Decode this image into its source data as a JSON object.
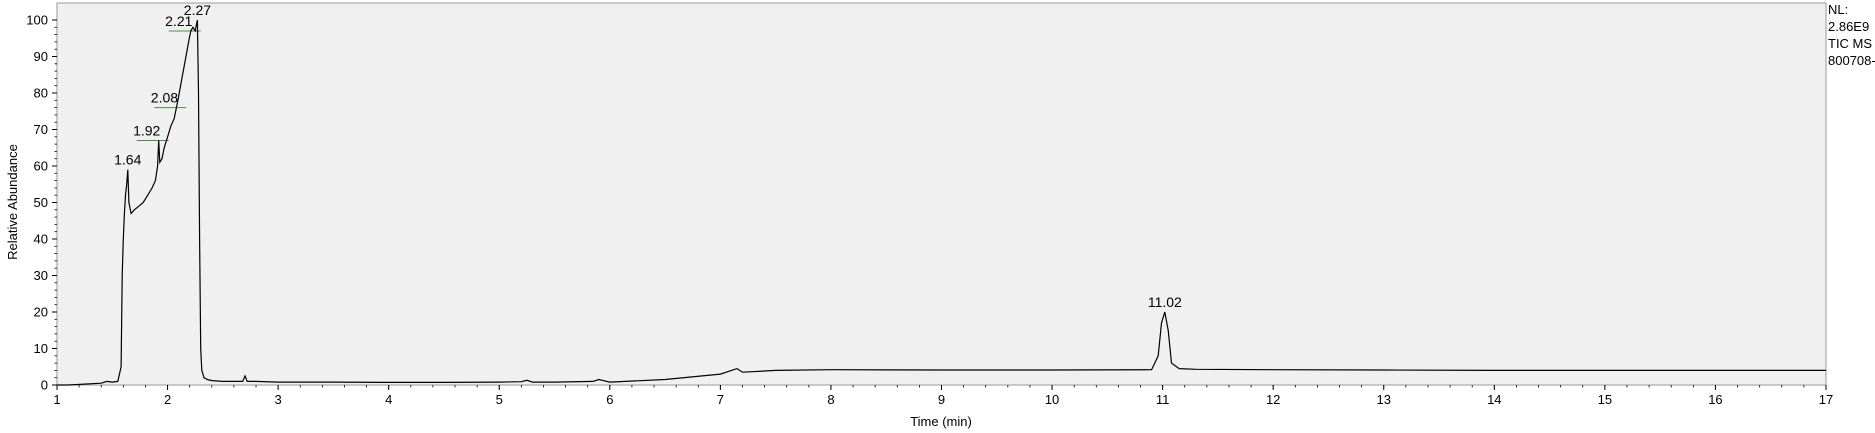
{
  "chart_data": {
    "type": "line",
    "xlabel": "Time (min)",
    "ylabel": "Relative Abundance",
    "xlim": [
      1,
      17
    ],
    "ylim": [
      0,
      100
    ],
    "x_ticks": [
      1,
      2,
      3,
      4,
      5,
      6,
      7,
      8,
      9,
      10,
      11,
      12,
      13,
      14,
      15,
      16,
      17
    ],
    "y_ticks": [
      0,
      10,
      20,
      30,
      40,
      50,
      60,
      70,
      80,
      90,
      100
    ],
    "grid": false,
    "plot_background": "#f0f0f0",
    "line_color": "#000000",
    "marker_color": "#3a9a3a",
    "peaks": [
      {
        "label": "1.64",
        "x": 1.64,
        "y": 59
      },
      {
        "label": "1.92",
        "x": 1.92,
        "y": 67
      },
      {
        "label": "2.08",
        "x": 2.08,
        "y": 76
      },
      {
        "label": "2.21",
        "x": 2.21,
        "y": 97
      },
      {
        "label": "2.27",
        "x": 2.27,
        "y": 100
      },
      {
        "label": "11.02",
        "x": 11.02,
        "y": 20
      }
    ],
    "series": [
      {
        "x": [
          1.0,
          1.1,
          1.4,
          1.45,
          1.5,
          1.55,
          1.58,
          1.59,
          1.6,
          1.61,
          1.62,
          1.63,
          1.64,
          1.65,
          1.67,
          1.7,
          1.74,
          1.78,
          1.82,
          1.86,
          1.89,
          1.91,
          1.92,
          1.93,
          1.95,
          1.97,
          2.0,
          2.03,
          2.06,
          2.08,
          2.1,
          2.13,
          2.16,
          2.19,
          2.21,
          2.23,
          2.25,
          2.27,
          2.28,
          2.29,
          2.3,
          2.31,
          2.33,
          2.36,
          2.4,
          2.5,
          2.6,
          2.68,
          2.7,
          2.72,
          2.8,
          3.0,
          3.5,
          4.0,
          4.5,
          5.0,
          5.2,
          5.25,
          5.3,
          5.5,
          5.85,
          5.9,
          6.0,
          6.5,
          7.0,
          7.15,
          7.2,
          7.5,
          8.0,
          9.0,
          10.0,
          10.9,
          10.96,
          10.99,
          11.02,
          11.05,
          11.08,
          11.15,
          11.3,
          12.0,
          13.0,
          14.0,
          15.0,
          16.0,
          17.0
        ],
        "y": [
          0,
          0,
          0.5,
          1,
          0.8,
          1,
          5,
          30,
          40,
          47,
          52,
          55,
          59,
          50,
          47,
          48,
          49,
          50,
          52,
          54,
          56,
          60,
          67,
          61,
          62,
          65,
          68,
          71,
          73,
          76,
          79,
          84,
          89,
          94,
          97,
          98,
          97,
          100,
          80,
          40,
          10,
          4,
          2,
          1.5,
          1.2,
          1,
          1,
          1,
          2.5,
          1,
          1,
          0.8,
          0.8,
          0.7,
          0.7,
          0.8,
          0.9,
          1.3,
          0.8,
          0.8,
          1,
          1.5,
          0.8,
          1.5,
          3,
          4.5,
          3.5,
          4,
          4.2,
          4.1,
          4.1,
          4.2,
          8,
          17,
          20,
          15,
          6,
          4.5,
          4.3,
          4.2,
          4.1,
          4,
          4,
          4,
          4
        ]
      }
    ]
  },
  "info": {
    "nl_label": "NL:",
    "nl_value": "2.86E9",
    "scan_filter": "TIC  MS",
    "file_name": "800708-"
  }
}
